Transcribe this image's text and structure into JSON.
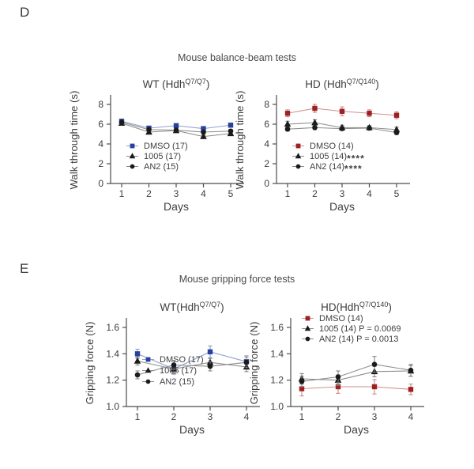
{
  "panels": [
    {
      "label": "D",
      "section_title": "Mouse balance-beam tests"
    },
    {
      "label": "E",
      "section_title": "Mouse gripping force tests"
    }
  ],
  "colors": {
    "blue": "#27429e",
    "dark_red": "#9e2121",
    "black": "#1b1b1b",
    "axis": "#4d4d4d",
    "text": "#3e3e3e"
  },
  "chart_data": [
    {
      "id": "d-wt",
      "type": "line",
      "title": {
        "pre": "WT (Hdh",
        "sup": "Q7/Q7",
        "post": ")"
      },
      "xlabel": "Days",
      "ylabel": "Walk through time (s)",
      "x": [
        1,
        2,
        3,
        4,
        5
      ],
      "ylim": [
        0,
        8.8
      ],
      "yticks": [
        0,
        2,
        4,
        6,
        8
      ],
      "ytick_labels": [
        "0",
        "2",
        "4",
        "6",
        "8"
      ],
      "grid": false,
      "legend_position": "bottom-left",
      "series": [
        {
          "name": "DMSO (17)",
          "marker": "square",
          "color": "#27429e",
          "values": [
            6.3,
            5.6,
            5.85,
            5.55,
            5.9
          ],
          "errors": [
            0.22,
            0.18,
            0.18,
            0.18,
            0.22
          ]
        },
        {
          "name": "1005 (17)",
          "marker": "triangle",
          "color": "#1b1b1b",
          "values": [
            6.1,
            5.2,
            5.35,
            4.75,
            5.05
          ],
          "errors": [
            0.18,
            0.15,
            0.15,
            0.15,
            0.18
          ]
        },
        {
          "name": "AN2 (15)",
          "marker": "circle",
          "color": "#1b1b1b",
          "values": [
            6.2,
            5.45,
            5.4,
            5.2,
            5.3
          ],
          "errors": [
            0.2,
            0.15,
            0.15,
            0.18,
            0.18
          ]
        }
      ]
    },
    {
      "id": "d-hd",
      "type": "line",
      "title": {
        "pre": "HD (Hdh",
        "sup": "Q7/Q140",
        "post": ")"
      },
      "xlabel": "Days",
      "ylabel": "Walk through time (s)",
      "x": [
        1,
        2,
        3,
        4,
        5
      ],
      "ylim": [
        0,
        8.8
      ],
      "yticks": [
        0,
        2,
        4,
        6,
        8
      ],
      "ytick_labels": [
        "0",
        "2",
        "4",
        "6",
        "8"
      ],
      "grid": false,
      "legend_position": "bottom-left",
      "series": [
        {
          "name": "DMSO (14)",
          "marker": "square",
          "color": "#9e2121",
          "values": [
            7.1,
            7.6,
            7.3,
            7.1,
            6.9
          ],
          "errors": [
            0.35,
            0.4,
            0.45,
            0.35,
            0.35
          ]
        },
        {
          "name": "1005 (14)",
          "suffix": "****",
          "marker": "triangle",
          "color": "#1b1b1b",
          "values": [
            6.0,
            6.15,
            5.65,
            5.65,
            5.45
          ],
          "errors": [
            0.3,
            0.3,
            0.25,
            0.2,
            0.25
          ]
        },
        {
          "name": "AN2 (14)",
          "suffix": "****",
          "marker": "circle",
          "color": "#1b1b1b",
          "values": [
            5.5,
            5.65,
            5.55,
            5.6,
            5.15
          ],
          "errors": [
            0.2,
            0.2,
            0.18,
            0.15,
            0.2
          ]
        }
      ]
    },
    {
      "id": "e-wt",
      "type": "line",
      "title": {
        "pre": "WT(Hdh",
        "sup": "Q7/Q7",
        "post": ")"
      },
      "xlabel": "Days",
      "ylabel": "Gripping force (N)",
      "x": [
        1,
        2,
        3,
        4
      ],
      "ylim": [
        1.0,
        1.66
      ],
      "yticks": [
        1.0,
        1.2,
        1.4,
        1.6
      ],
      "ytick_labels": [
        "1.0",
        "1.2",
        "1.4",
        "1.6"
      ],
      "grid": false,
      "legend_position": "bottom-left",
      "series": [
        {
          "name": "DMSO (17)",
          "marker": "square",
          "color": "#27429e",
          "values": [
            1.4,
            1.285,
            1.415,
            1.34
          ],
          "errors": [
            0.035,
            0.04,
            0.045,
            0.045
          ]
        },
        {
          "name": "1005 (17)",
          "marker": "triangle",
          "color": "#1b1b1b",
          "values": [
            1.345,
            1.285,
            1.335,
            1.3
          ],
          "errors": [
            0.03,
            0.035,
            0.03,
            0.035
          ]
        },
        {
          "name": "AN2 (15)",
          "marker": "circle",
          "color": "#1b1b1b",
          "values": [
            1.24,
            1.315,
            1.305,
            1.335
          ],
          "errors": [
            0.03,
            0.035,
            0.035,
            0.04
          ]
        }
      ]
    },
    {
      "id": "e-hd",
      "type": "line",
      "title": {
        "pre": "HD(Hdh",
        "sup": "Q7/Q140",
        "post": ")"
      },
      "xlabel": "Days",
      "ylabel": "Gripping force (N)",
      "x": [
        1,
        2,
        3,
        4
      ],
      "ylim": [
        1.0,
        1.66
      ],
      "yticks": [
        1.0,
        1.2,
        1.4,
        1.6
      ],
      "ytick_labels": [
        "1.0",
        "1.2",
        "1.4",
        "1.6"
      ],
      "grid": false,
      "legend_position": "top-left",
      "series": [
        {
          "name": "DMSO (14)",
          "marker": "square",
          "color": "#9e2121",
          "values": [
            1.135,
            1.15,
            1.15,
            1.13
          ],
          "errors": [
            0.055,
            0.05,
            0.055,
            0.04
          ]
        },
        {
          "name": "1005 (14) P = 0.0069",
          "marker": "triangle",
          "color": "#1b1b1b",
          "values": [
            1.21,
            1.2,
            1.265,
            1.27
          ],
          "errors": [
            0.04,
            0.04,
            0.04,
            0.04
          ]
        },
        {
          "name": "AN2 (14) P = 0.0013",
          "marker": "circle",
          "color": "#1b1b1b",
          "values": [
            1.19,
            1.225,
            1.32,
            1.275
          ],
          "errors": [
            0.04,
            0.045,
            0.06,
            0.045
          ]
        }
      ]
    }
  ]
}
